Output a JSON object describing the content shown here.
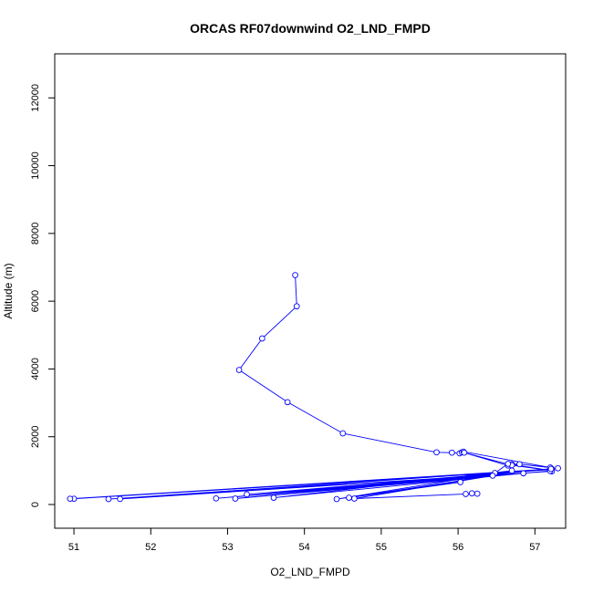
{
  "chart_data": {
    "type": "line",
    "title": "ORCAS RF07downwind O2_LND_FMPD",
    "xlabel": "O2_LND_FMPD",
    "ylabel": "Altitude (m)",
    "xlim": [
      50.75,
      57.4
    ],
    "ylim": [
      -700,
      13300
    ],
    "x_ticks": [
      51,
      52,
      53,
      54,
      55,
      56,
      57
    ],
    "y_ticks": [
      0,
      2000,
      4000,
      6000,
      8000,
      10000,
      12000
    ],
    "line_color": "#0000ff",
    "markers": "open-circle",
    "series": [
      {
        "points": [
          [
            53.88,
            6770
          ],
          [
            53.9,
            5850
          ],
          [
            53.45,
            4900
          ],
          [
            53.15,
            3970
          ],
          [
            53.78,
            3020
          ],
          [
            54.5,
            2100
          ],
          [
            55.72,
            1540
          ],
          [
            55.92,
            1530
          ],
          [
            56.02,
            1510
          ],
          [
            56.05,
            1540
          ],
          [
            56.07,
            1560
          ],
          [
            57.2,
            1090
          ],
          [
            56.8,
            1190
          ],
          [
            56.7,
            1190
          ],
          [
            56.65,
            1150
          ],
          [
            56.08,
            1530
          ],
          [
            56.7,
            1160
          ],
          [
            57.22,
            1000
          ],
          [
            56.65,
            1200
          ],
          [
            56.48,
            930
          ],
          [
            57.22,
            1030
          ],
          [
            51.0,
            170
          ],
          [
            50.95,
            170
          ],
          [
            57.22,
            1050
          ],
          [
            51.45,
            160
          ],
          [
            57.22,
            980
          ],
          [
            51.6,
            165
          ],
          [
            57.3,
            1070
          ],
          [
            52.85,
            180
          ],
          [
            57.2,
            990
          ],
          [
            53.1,
            175
          ],
          [
            57.21,
            1050
          ],
          [
            53.25,
            300
          ],
          [
            56.85,
            920
          ],
          [
            53.6,
            200
          ],
          [
            56.7,
            1000
          ],
          [
            54.42,
            160
          ],
          [
            56.03,
            660
          ],
          [
            54.58,
            200
          ],
          [
            56.45,
            850
          ],
          [
            54.65,
            175
          ],
          [
            56.1,
            310
          ],
          [
            56.25,
            320
          ],
          [
            56.18,
            330
          ]
        ]
      }
    ]
  }
}
